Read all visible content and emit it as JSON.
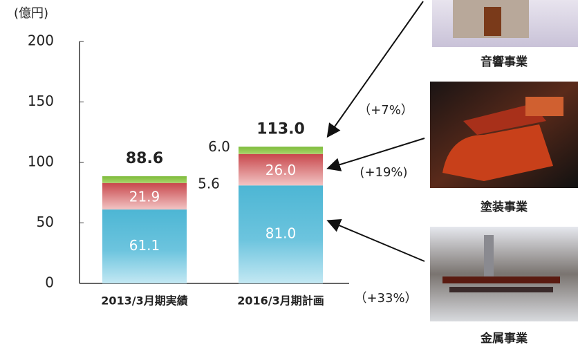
{
  "chart_data": {
    "type": "stacked_bar",
    "y_label": "(億円)",
    "categories": [
      "2013/3月期実績",
      "2016/3月期計画"
    ],
    "series": [
      {
        "name": "金属事業",
        "color": "#4db6d4",
        "values": [
          61.1,
          81.0
        ],
        "value_labels": [
          "61.1",
          "81.0"
        ],
        "change": "（+33%）"
      },
      {
        "name": "塗装事業",
        "color": "#c8484c",
        "values": [
          21.9,
          26.0
        ],
        "value_labels": [
          "21.9",
          "26.0"
        ],
        "change": "(+19%)"
      },
      {
        "name": "音響事業",
        "color": "#7dbb3a",
        "values": [
          5.6,
          6.0
        ],
        "value_labels": [
          "5.6",
          "6.0"
        ],
        "change": "（+7%）"
      }
    ],
    "totals": [
      88.6,
      113.0
    ],
    "total_labels": [
      "88.6",
      "113.0"
    ],
    "ylim": [
      0,
      200
    ],
    "yticks": [
      0,
      50,
      100,
      150,
      200
    ]
  }
}
